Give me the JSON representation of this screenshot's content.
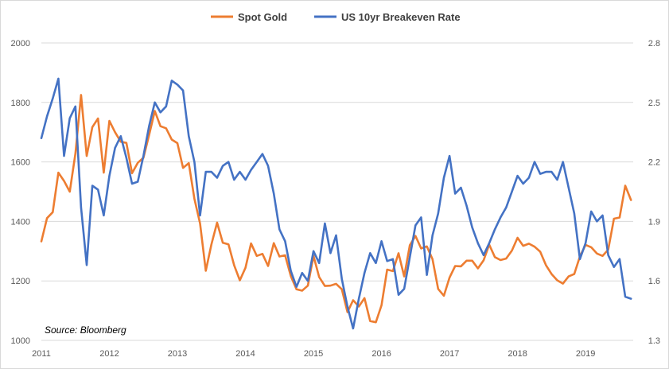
{
  "chart_data": {
    "type": "line",
    "title": "",
    "source_note": "Source: Bloomberg",
    "legend_position": "top-center",
    "grid": true,
    "x_axis": {
      "ticks": [
        "2011",
        "2012",
        "2013",
        "2014",
        "2015",
        "2016",
        "2017",
        "2018",
        "2019"
      ],
      "range": [
        2011.0,
        2019.7
      ]
    },
    "y_left": {
      "ticks": [
        "1000",
        "1200",
        "1400",
        "1600",
        "1800",
        "2000"
      ],
      "range": [
        1000,
        2000
      ]
    },
    "y_right": {
      "ticks": [
        "1.3",
        "1.6",
        "1.9",
        "2.2",
        "2.5",
        "2.8"
      ],
      "range": [
        1.3,
        2.8
      ]
    },
    "series": [
      {
        "name": "Spot Gold",
        "color": "#ED7D31",
        "axis": "left",
        "x": [
          2011.0,
          2011.083,
          2011.167,
          2011.25,
          2011.333,
          2011.417,
          2011.5,
          2011.583,
          2011.667,
          2011.75,
          2011.833,
          2011.917,
          2012.0,
          2012.083,
          2012.167,
          2012.25,
          2012.333,
          2012.417,
          2012.5,
          2012.583,
          2012.667,
          2012.75,
          2012.833,
          2012.917,
          2013.0,
          2013.083,
          2013.167,
          2013.25,
          2013.333,
          2013.417,
          2013.5,
          2013.583,
          2013.667,
          2013.75,
          2013.833,
          2013.917,
          2014.0,
          2014.083,
          2014.167,
          2014.25,
          2014.333,
          2014.417,
          2014.5,
          2014.583,
          2014.667,
          2014.75,
          2014.833,
          2014.917,
          2015.0,
          2015.083,
          2015.167,
          2015.25,
          2015.333,
          2015.417,
          2015.5,
          2015.583,
          2015.667,
          2015.75,
          2015.833,
          2015.917,
          2016.0,
          2016.083,
          2016.167,
          2016.25,
          2016.333,
          2016.417,
          2016.5,
          2016.583,
          2016.667,
          2016.75,
          2016.833,
          2016.917,
          2017.0,
          2017.083,
          2017.167,
          2017.25,
          2017.333,
          2017.417,
          2017.5,
          2017.583,
          2017.667,
          2017.75,
          2017.833,
          2017.917,
          2018.0,
          2018.083,
          2018.167,
          2018.25,
          2018.333,
          2018.417,
          2018.5,
          2018.583,
          2018.667,
          2018.75,
          2018.833,
          2018.917,
          2019.0,
          2019.083,
          2019.167,
          2019.25,
          2019.333,
          2019.417,
          2019.5,
          2019.583,
          2019.667
        ],
        "values": [
          1333,
          1411,
          1431,
          1564,
          1536,
          1500,
          1628,
          1825,
          1620,
          1717,
          1746,
          1564,
          1738,
          1700,
          1668,
          1664,
          1562,
          1597,
          1614,
          1690,
          1771,
          1720,
          1713,
          1675,
          1663,
          1580,
          1596,
          1476,
          1393,
          1234,
          1323,
          1396,
          1328,
          1323,
          1253,
          1202,
          1244,
          1326,
          1284,
          1291,
          1250,
          1327,
          1282,
          1286,
          1216,
          1172,
          1167,
          1184,
          1284,
          1213,
          1183,
          1184,
          1190,
          1172,
          1095,
          1135,
          1114,
          1142,
          1065,
          1061,
          1118,
          1238,
          1233,
          1293,
          1215,
          1320,
          1351,
          1309,
          1316,
          1273,
          1173,
          1150,
          1211,
          1250,
          1249,
          1268,
          1268,
          1242,
          1269,
          1322,
          1280,
          1270,
          1275,
          1302,
          1345,
          1318,
          1325,
          1315,
          1298,
          1253,
          1223,
          1202,
          1191,
          1215,
          1223,
          1282,
          1321,
          1313,
          1292,
          1284,
          1305,
          1409,
          1413,
          1520,
          1472
        ]
      },
      {
        "name": "US 10yr Breakeven Rate",
        "color": "#4472C4",
        "axis": "right",
        "x": [
          2011.0,
          2011.083,
          2011.167,
          2011.25,
          2011.333,
          2011.417,
          2011.5,
          2011.583,
          2011.667,
          2011.75,
          2011.833,
          2011.917,
          2012.0,
          2012.083,
          2012.167,
          2012.25,
          2012.333,
          2012.417,
          2012.5,
          2012.583,
          2012.667,
          2012.75,
          2012.833,
          2012.917,
          2013.0,
          2013.083,
          2013.167,
          2013.25,
          2013.333,
          2013.417,
          2013.5,
          2013.583,
          2013.667,
          2013.75,
          2013.833,
          2013.917,
          2014.0,
          2014.083,
          2014.167,
          2014.25,
          2014.333,
          2014.417,
          2014.5,
          2014.583,
          2014.667,
          2014.75,
          2014.833,
          2014.917,
          2015.0,
          2015.083,
          2015.167,
          2015.25,
          2015.333,
          2015.417,
          2015.5,
          2015.583,
          2015.667,
          2015.75,
          2015.833,
          2015.917,
          2016.0,
          2016.083,
          2016.167,
          2016.25,
          2016.333,
          2016.417,
          2016.5,
          2016.583,
          2016.667,
          2016.75,
          2016.833,
          2016.917,
          2017.0,
          2017.083,
          2017.167,
          2017.25,
          2017.333,
          2017.417,
          2017.5,
          2017.583,
          2017.667,
          2017.75,
          2017.833,
          2017.917,
          2018.0,
          2018.083,
          2018.167,
          2018.25,
          2018.333,
          2018.417,
          2018.5,
          2018.583,
          2018.667,
          2018.75,
          2018.833,
          2018.917,
          2019.0,
          2019.083,
          2019.167,
          2019.25,
          2019.333,
          2019.417,
          2019.5,
          2019.583,
          2019.667
        ],
        "values": [
          2.32,
          2.43,
          2.52,
          2.62,
          2.23,
          2.42,
          2.48,
          1.97,
          1.68,
          2.08,
          2.06,
          1.93,
          2.13,
          2.27,
          2.33,
          2.22,
          2.09,
          2.1,
          2.23,
          2.38,
          2.5,
          2.45,
          2.48,
          2.61,
          2.59,
          2.56,
          2.33,
          2.2,
          1.93,
          2.15,
          2.15,
          2.12,
          2.18,
          2.2,
          2.11,
          2.15,
          2.11,
          2.16,
          2.2,
          2.24,
          2.18,
          2.04,
          1.86,
          1.8,
          1.65,
          1.57,
          1.64,
          1.6,
          1.75,
          1.69,
          1.89,
          1.74,
          1.83,
          1.61,
          1.47,
          1.36,
          1.51,
          1.64,
          1.74,
          1.69,
          1.8,
          1.7,
          1.71,
          1.53,
          1.56,
          1.72,
          1.88,
          1.92,
          1.63,
          1.83,
          1.94,
          2.12,
          2.23,
          2.04,
          2.07,
          1.98,
          1.87,
          1.79,
          1.73,
          1.79,
          1.86,
          1.92,
          1.97,
          2.05,
          2.13,
          2.09,
          2.12,
          2.2,
          2.14,
          2.15,
          2.15,
          2.11,
          2.2,
          2.07,
          1.94,
          1.71,
          1.79,
          1.95,
          1.9,
          1.93,
          1.73,
          1.67,
          1.71,
          1.52,
          1.51
        ]
      }
    ]
  }
}
